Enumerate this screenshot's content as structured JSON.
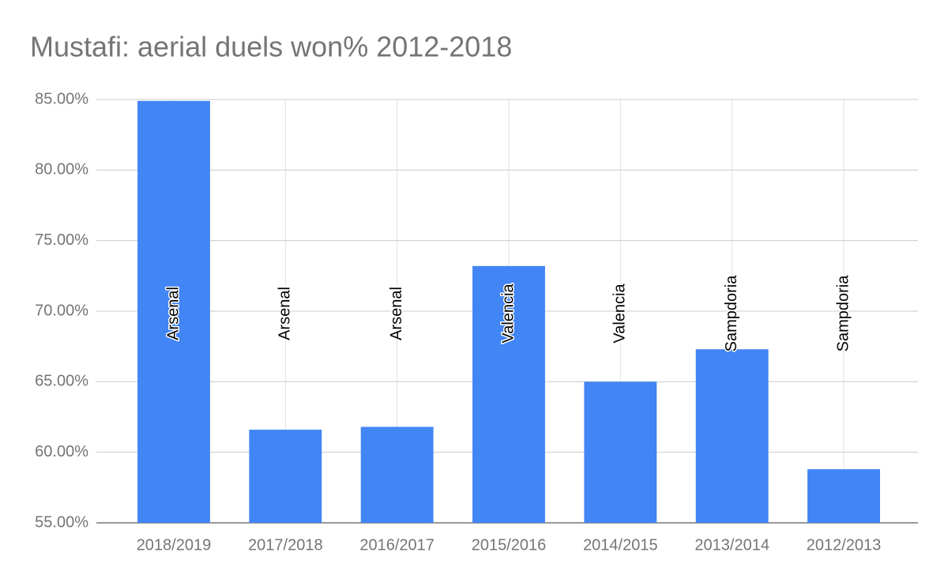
{
  "chart_data": {
    "type": "bar",
    "title": "Mustafi: aerial duels won% 2012-2018",
    "categories": [
      "2018/2019",
      "2017/2018",
      "2016/2017",
      "2015/2016",
      "2014/2015",
      "2013/2014",
      "2012/2013"
    ],
    "values": [
      84.9,
      61.6,
      61.8,
      73.2,
      65.0,
      67.3,
      58.8
    ],
    "bar_labels": [
      "Arsenal",
      "Arsenal",
      "Arsenal",
      "Valencia",
      "Valencia",
      "Sampdoria",
      "Sampdoria"
    ],
    "color": "#4285f4",
    "ylim": [
      55,
      85
    ],
    "yticks": [
      {
        "value": 55,
        "label": "55.00%"
      },
      {
        "value": 60,
        "label": "60.00%"
      },
      {
        "value": 65,
        "label": "65.00%"
      },
      {
        "value": 70,
        "label": "70.00%"
      },
      {
        "value": 75,
        "label": "75.00%"
      },
      {
        "value": 80,
        "label": "80.00%"
      },
      {
        "value": 85,
        "label": "85.00%"
      }
    ],
    "grid": true
  }
}
